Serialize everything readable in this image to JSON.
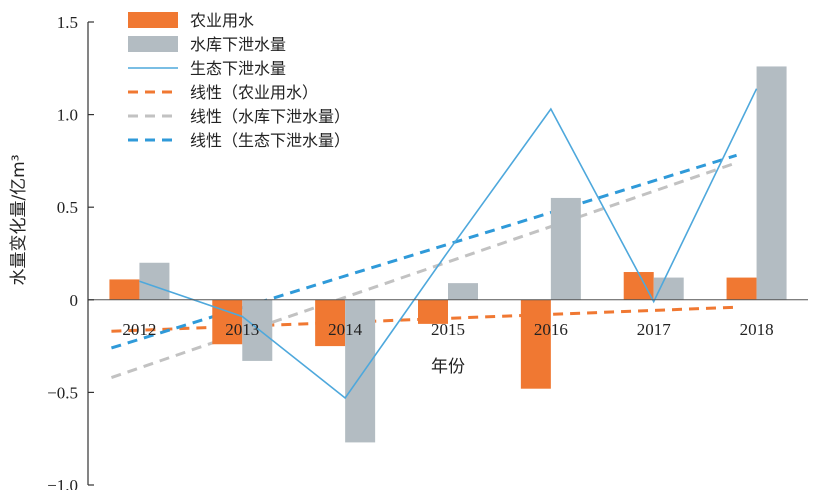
{
  "chart_data": {
    "type": "bar",
    "xlabel": "年份",
    "ylabel": "水量变化量/亿m³",
    "ylim": [
      -1.0,
      1.5
    ],
    "yticks": [
      -1.0,
      -0.5,
      0,
      0.5,
      1.0,
      1.5
    ],
    "ytick_labels": [
      "−1.0",
      "−0.5",
      "0",
      "0.5",
      "1.0",
      "1.5"
    ],
    "categories": [
      "2012",
      "2013",
      "2014",
      "2015",
      "2016",
      "2017",
      "2018"
    ],
    "grid": false,
    "legend_position": "top-left",
    "series": [
      {
        "name": "农业用水",
        "type": "bar",
        "color": "#f07832",
        "values": [
          0.11,
          -0.24,
          -0.25,
          -0.13,
          -0.48,
          0.15,
          0.12
        ]
      },
      {
        "name": "水库下泄水量",
        "type": "bar",
        "color": "#b3bcc2",
        "values": [
          0.2,
          -0.33,
          -0.77,
          0.09,
          0.55,
          0.12,
          1.26
        ]
      },
      {
        "name": "生态下泄水量",
        "type": "line",
        "color": "#4ea8dc",
        "values": [
          0.1,
          -0.09,
          -0.53,
          0.26,
          1.03,
          -0.01,
          1.14
        ]
      }
    ],
    "trendlines": [
      {
        "name": "线性（农业用水）",
        "color": "#f07832",
        "start": -0.17,
        "end": -0.04
      },
      {
        "name": "线性（水库下泄水量）",
        "color": "#c2c2c2",
        "start": -0.42,
        "end": 0.74
      },
      {
        "name": "线性（生态下泄水量）",
        "color": "#2f9ad9",
        "start": -0.26,
        "end": 0.78
      }
    ]
  }
}
